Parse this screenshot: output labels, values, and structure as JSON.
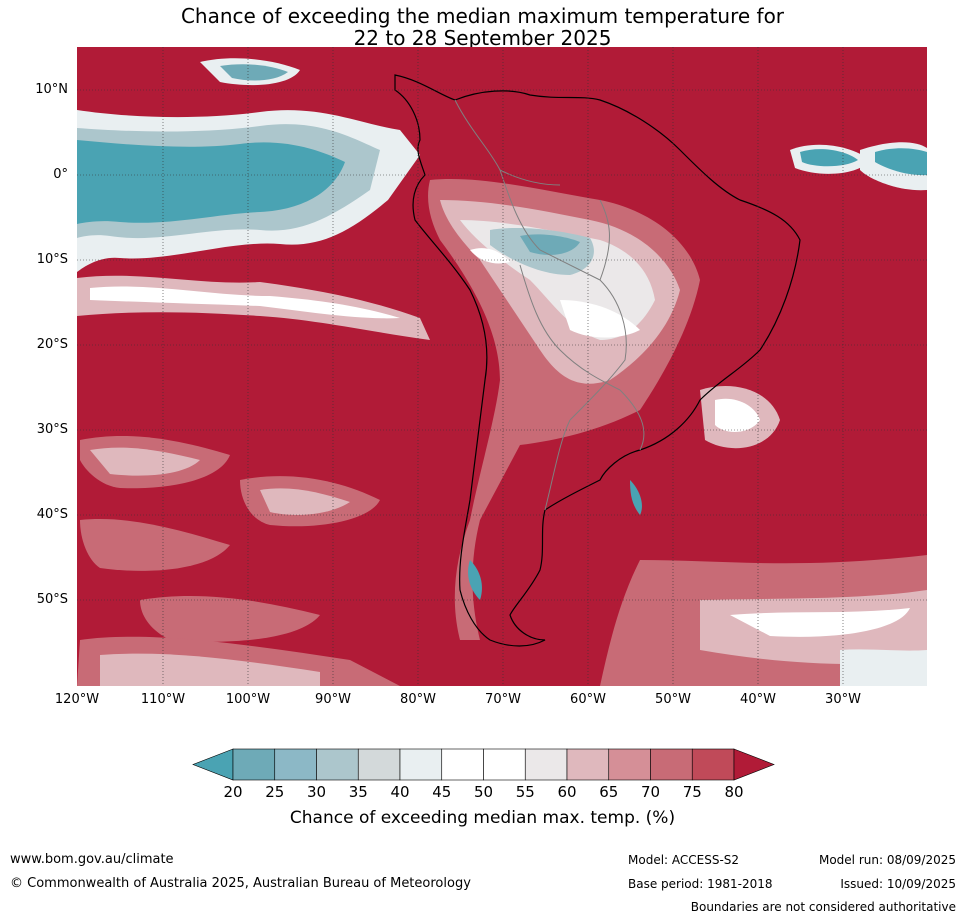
{
  "title": {
    "line1": "Chance of exceeding the median maximum temperature for",
    "line2": "22 to 28 September 2025"
  },
  "map": {
    "region": "South America",
    "latitude_labels": [
      "10°N",
      "0°",
      "10°S",
      "20°S",
      "30°S",
      "40°S",
      "50°S"
    ],
    "longitude_labels": [
      "120°W",
      "110°W",
      "100°W",
      "90°W",
      "80°W",
      "70°W",
      "60°W",
      "50°W",
      "40°W",
      "30°W"
    ],
    "dominant_category": "80",
    "colors": {
      "c20_below": "#4aa3b3",
      "c20_25": "#6eaab7",
      "c25_30": "#8cb8c6",
      "c30_35": "#acc6cc",
      "c35_40": "#d3d9da",
      "c40_45": "#e9eff1",
      "c45_50": "#ffffff",
      "c50_55": "#ffffff",
      "c55_60": "#ebe8e9",
      "c60_65": "#dfb8bd",
      "c65_70": "#d58f97",
      "c70_75": "#c86b76",
      "c75_80": "#c04a59",
      "c80_above": "#b11b37",
      "coastline": "#000000",
      "borders": "#808080"
    }
  },
  "legend": {
    "ticks": [
      "20",
      "25",
      "30",
      "35",
      "40",
      "45",
      "50",
      "55",
      "60",
      "65",
      "70",
      "75",
      "80"
    ],
    "colors": [
      "#6eaab7",
      "#8cb8c6",
      "#acc6cc",
      "#d3d9da",
      "#e9eff1",
      "#ffffff",
      "#ffffff",
      "#ebe8e9",
      "#dfb8bd",
      "#d58f97",
      "#c86b76",
      "#c04a59"
    ],
    "low_color": "#4aa3b3",
    "high_color": "#b11b37",
    "title": "Chance of exceeding median max. temp. (%)"
  },
  "footer": {
    "website": "www.bom.gov.au/climate",
    "copyright": "© Commonwealth of Australia 2025, Australian Bureau of Meteorology",
    "model": "Model: ACCESS-S2",
    "base_period": "Base period: 1981-2018",
    "model_run": "Model run: 08/09/2025",
    "issued": "Issued: 10/09/2025",
    "disclaimer": "Boundaries are not considered authoritative"
  }
}
